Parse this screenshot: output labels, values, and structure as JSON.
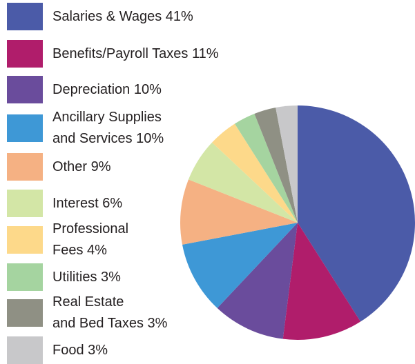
{
  "chart_data": {
    "type": "pie",
    "categories": [
      "Salaries & Wages 41%",
      "Benefits/Payroll Taxes 11%",
      "Depreciation 10%",
      "Ancillary Supplies\nand Services 10%",
      "Other 9%",
      "Interest 6%",
      "Professional\nFees 4%",
      "Utilities 3%",
      "Real Estate\nand Bed Taxes 3%",
      "Food 3%"
    ],
    "values": [
      41,
      11,
      10,
      10,
      9,
      6,
      4,
      3,
      3,
      3
    ],
    "colors": [
      "#4b5ba8",
      "#b01d6b",
      "#6a4c9c",
      "#3e98d6",
      "#f5b183",
      "#d3e6a6",
      "#fdd98a",
      "#a5d4a0",
      "#8f9084",
      "#c8c8ca"
    ],
    "legend": "left"
  }
}
